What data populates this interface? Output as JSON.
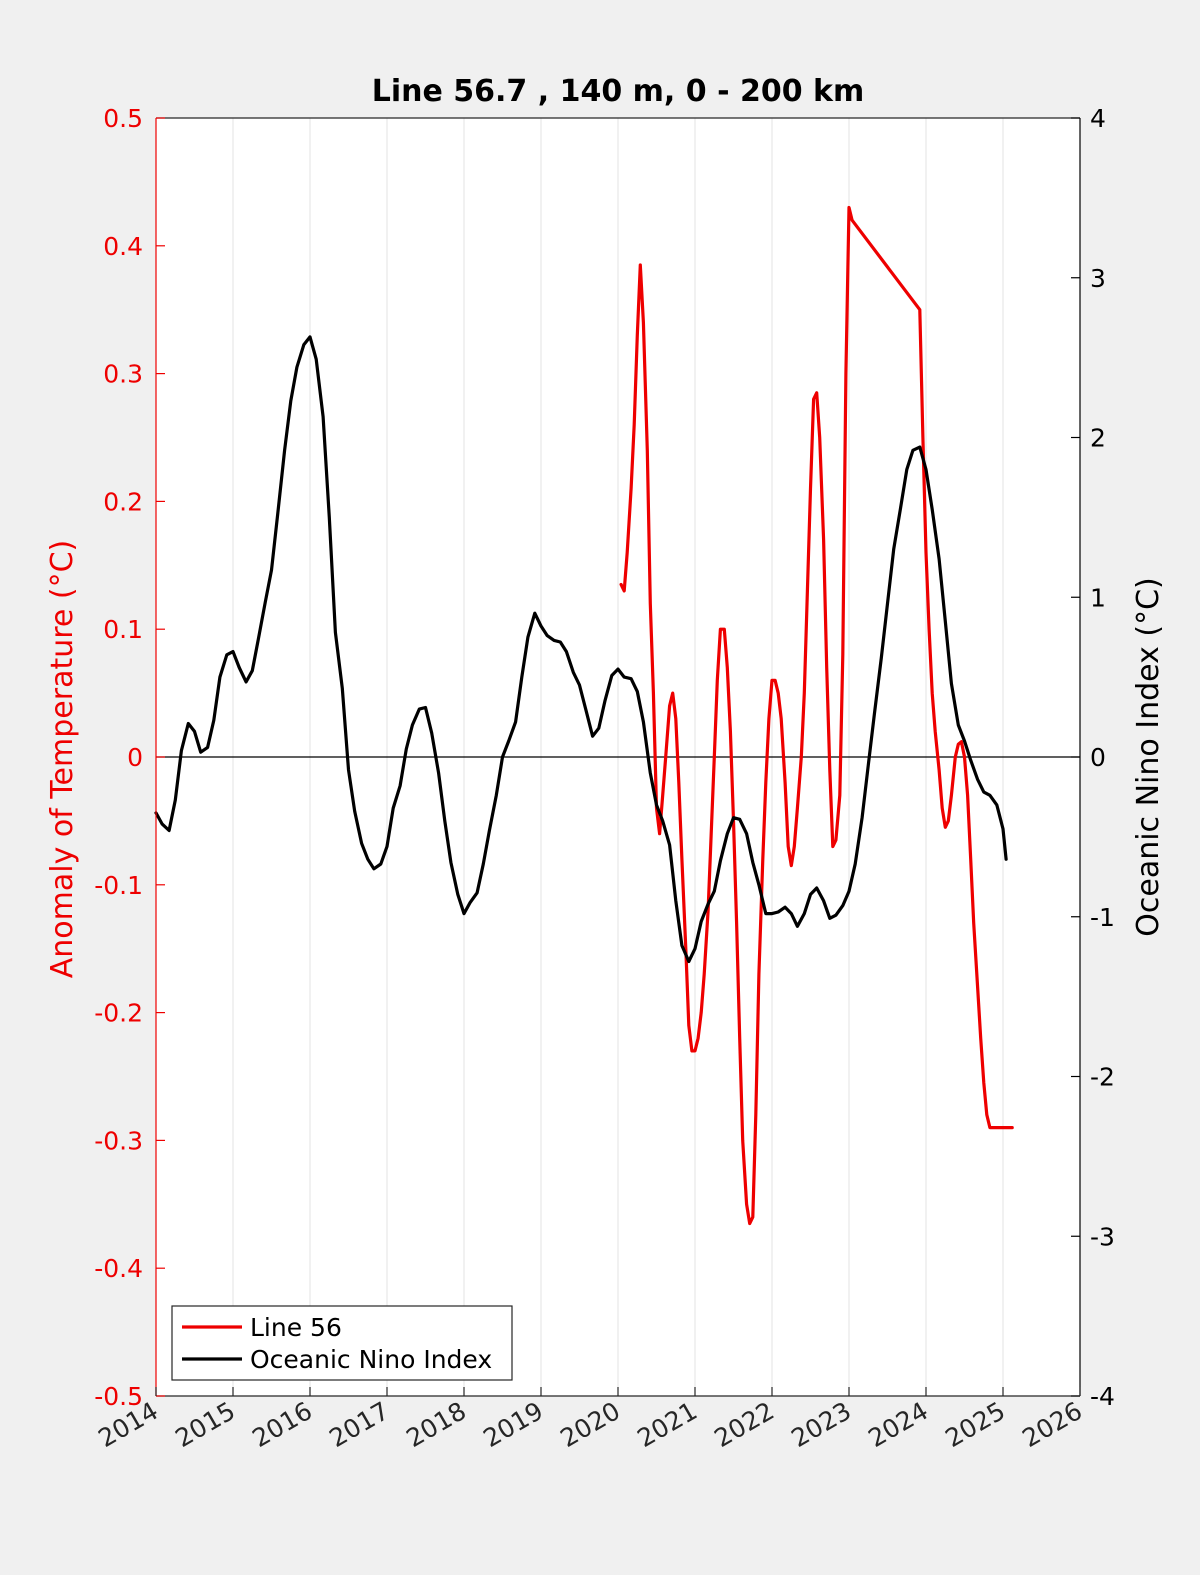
{
  "chart_data": {
    "type": "line",
    "title": "Line 56.7 , 140 m, 0 - 200 km",
    "xlabel": "",
    "x_ticks": [
      "2014",
      "2015",
      "2016",
      "2017",
      "2018",
      "2019",
      "2020",
      "2021",
      "2022",
      "2023",
      "2024",
      "2025",
      "2026"
    ],
    "xlim": [
      2014,
      2026
    ],
    "y_left": {
      "label": "Anomaly of Temperature (°C)",
      "lim": [
        -0.5,
        0.5
      ],
      "ticks": [
        "0.5",
        "0.4",
        "0.3",
        "0.2",
        "0.1",
        "0",
        "-0.1",
        "-0.2",
        "-0.3",
        "-0.4",
        "-0.5"
      ],
      "color": "#ee0000"
    },
    "y_right": {
      "label": "Oceanic Nino Index (°C)",
      "lim": [
        -4,
        4
      ],
      "ticks": [
        "4",
        "3",
        "2",
        "1",
        "0",
        "-1",
        "-2",
        "-3",
        "-4"
      ],
      "color": "#000000"
    },
    "grid": "vertical",
    "legend_position": "bottom-left",
    "series": [
      {
        "name": "Line 56",
        "axis": "left",
        "color": "#ee0000",
        "x": [
          2020.04,
          2020.08,
          2020.12,
          2020.17,
          2020.21,
          2020.25,
          2020.29,
          2020.33,
          2020.38,
          2020.42,
          2020.46,
          2020.5,
          2020.54,
          2020.58,
          2020.62,
          2020.67,
          2020.71,
          2020.75,
          2020.79,
          2020.83,
          2020.88,
          2020.92,
          2020.96,
          2021.0,
          2021.04,
          2021.08,
          2021.12,
          2021.17,
          2021.21,
          2021.25,
          2021.29,
          2021.33,
          2021.38,
          2021.42,
          2021.46,
          2021.5,
          2021.54,
          2021.58,
          2021.62,
          2021.67,
          2021.71,
          2021.75,
          2021.79,
          2021.83,
          2021.88,
          2021.92,
          2021.96,
          2022.0,
          2022.04,
          2022.08,
          2022.12,
          2022.17,
          2022.21,
          2022.25,
          2022.29,
          2022.33,
          2022.38,
          2022.42,
          2022.46,
          2022.5,
          2022.54,
          2022.58,
          2022.62,
          2022.67,
          2022.71,
          2022.75,
          2022.79,
          2022.83,
          2022.88,
          2022.92,
          2022.96,
          2023.0,
          2023.04,
          2023.92,
          2023.96,
          2024.0,
          2024.04,
          2024.08,
          2024.12,
          2024.17,
          2024.21,
          2024.25,
          2024.29,
          2024.33,
          2024.38,
          2024.42,
          2024.46,
          2024.5,
          2024.54,
          2024.58,
          2024.62,
          2024.67,
          2024.71,
          2024.75,
          2024.79,
          2024.83,
          2024.88,
          2024.92,
          2024.96,
          2025.0,
          2025.04,
          2025.08,
          2025.12
        ],
        "values": [
          0.135,
          0.13,
          0.16,
          0.21,
          0.26,
          0.33,
          0.385,
          0.34,
          0.24,
          0.12,
          0.05,
          -0.04,
          -0.06,
          -0.03,
          0.0,
          0.04,
          0.05,
          0.03,
          -0.02,
          -0.08,
          -0.15,
          -0.21,
          -0.23,
          -0.23,
          -0.22,
          -0.2,
          -0.17,
          -0.12,
          -0.06,
          0.0,
          0.06,
          0.1,
          0.1,
          0.07,
          0.02,
          -0.05,
          -0.13,
          -0.22,
          -0.3,
          -0.35,
          -0.365,
          -0.36,
          -0.28,
          -0.17,
          -0.08,
          -0.02,
          0.03,
          0.06,
          0.06,
          0.05,
          0.03,
          -0.02,
          -0.07,
          -0.085,
          -0.07,
          -0.04,
          0.0,
          0.05,
          0.13,
          0.21,
          0.28,
          0.285,
          0.25,
          0.17,
          0.07,
          -0.01,
          -0.07,
          -0.065,
          -0.03,
          0.08,
          0.3,
          0.43,
          0.42,
          0.35,
          0.25,
          0.16,
          0.1,
          0.05,
          0.02,
          -0.01,
          -0.04,
          -0.055,
          -0.05,
          -0.03,
          0.0,
          0.01,
          0.012,
          0.0,
          -0.03,
          -0.08,
          -0.13,
          -0.18,
          -0.22,
          -0.255,
          -0.28,
          -0.29,
          -0.29,
          -0.29,
          -0.29,
          -0.29,
          -0.29,
          -0.29,
          -0.29
        ],
        "values_note_removed": []
      },
      {
        "name": "Oceanic Nino Index",
        "axis": "right",
        "color": "#000000",
        "x": [
          2014.0,
          2014.08,
          2014.17,
          2014.25,
          2014.33,
          2014.42,
          2014.5,
          2014.58,
          2014.67,
          2014.75,
          2014.83,
          2014.92,
          2015.0,
          2015.08,
          2015.17,
          2015.25,
          2015.33,
          2015.42,
          2015.5,
          2015.58,
          2015.67,
          2015.75,
          2015.83,
          2015.92,
          2016.0,
          2016.08,
          2016.17,
          2016.25,
          2016.33,
          2016.42,
          2016.5,
          2016.58,
          2016.67,
          2016.75,
          2016.83,
          2016.92,
          2017.0,
          2017.08,
          2017.17,
          2017.25,
          2017.33,
          2017.42,
          2017.5,
          2017.58,
          2017.67,
          2017.75,
          2017.83,
          2017.92,
          2018.0,
          2018.08,
          2018.17,
          2018.25,
          2018.33,
          2018.42,
          2018.5,
          2018.58,
          2018.67,
          2018.75,
          2018.83,
          2018.92,
          2019.0,
          2019.08,
          2019.17,
          2019.25,
          2019.33,
          2019.42,
          2019.5,
          2019.58,
          2019.67,
          2019.75,
          2019.83,
          2019.92,
          2020.0,
          2020.08,
          2020.17,
          2020.25,
          2020.33,
          2020.42,
          2020.5,
          2020.58,
          2020.67,
          2020.75,
          2020.83,
          2020.92,
          2021.0,
          2021.08,
          2021.17,
          2021.25,
          2021.33,
          2021.42,
          2021.5,
          2021.58,
          2021.67,
          2021.75,
          2021.83,
          2021.92,
          2022.0,
          2022.08,
          2022.17,
          2022.25,
          2022.33,
          2022.42,
          2022.5,
          2022.58,
          2022.67,
          2022.75,
          2022.83,
          2022.92,
          2023.0,
          2023.08,
          2023.17,
          2023.25,
          2023.33,
          2023.42,
          2023.5,
          2023.58,
          2023.67,
          2023.75,
          2023.83,
          2023.92,
          2024.0,
          2024.08,
          2024.17,
          2024.25,
          2024.33,
          2024.42,
          2024.5,
          2024.58,
          2024.67,
          2024.75,
          2024.83,
          2024.92,
          2025.0,
          2025.04
        ],
        "values": [
          -0.35,
          -0.42,
          -0.46,
          -0.27,
          0.04,
          0.21,
          0.16,
          0.03,
          0.06,
          0.23,
          0.5,
          0.64,
          0.66,
          0.56,
          0.47,
          0.54,
          0.74,
          0.97,
          1.17,
          1.52,
          1.92,
          2.23,
          2.44,
          2.58,
          2.63,
          2.49,
          2.13,
          1.5,
          0.78,
          0.43,
          -0.08,
          -0.34,
          -0.54,
          -0.64,
          -0.7,
          -0.67,
          -0.56,
          -0.32,
          -0.18,
          0.05,
          0.2,
          0.3,
          0.31,
          0.15,
          -0.1,
          -0.4,
          -0.66,
          -0.86,
          -0.98,
          -0.91,
          -0.85,
          -0.67,
          -0.46,
          -0.24,
          0.0,
          0.1,
          0.22,
          0.5,
          0.75,
          0.9,
          0.82,
          0.76,
          0.73,
          0.72,
          0.66,
          0.53,
          0.45,
          0.3,
          0.13,
          0.18,
          0.35,
          0.51,
          0.55,
          0.5,
          0.49,
          0.41,
          0.22,
          -0.1,
          -0.3,
          -0.4,
          -0.55,
          -0.9,
          -1.18,
          -1.28,
          -1.2,
          -1.03,
          -0.92,
          -0.84,
          -0.65,
          -0.48,
          -0.38,
          -0.39,
          -0.48,
          -0.66,
          -0.8,
          -0.98,
          -0.98,
          -0.97,
          -0.94,
          -0.98,
          -1.06,
          -0.98,
          -0.86,
          -0.82,
          -0.9,
          -1.01,
          -0.99,
          -0.93,
          -0.84,
          -0.67,
          -0.38,
          -0.05,
          0.27,
          0.62,
          0.96,
          1.3,
          1.56,
          1.8,
          1.92,
          1.94,
          1.8,
          1.55,
          1.24,
          0.85,
          0.46,
          0.2,
          0.1,
          -0.02,
          -0.14,
          -0.22,
          -0.24,
          -0.3,
          -0.45,
          -0.64
        ],
        "values_note_removed": []
      }
    ]
  }
}
